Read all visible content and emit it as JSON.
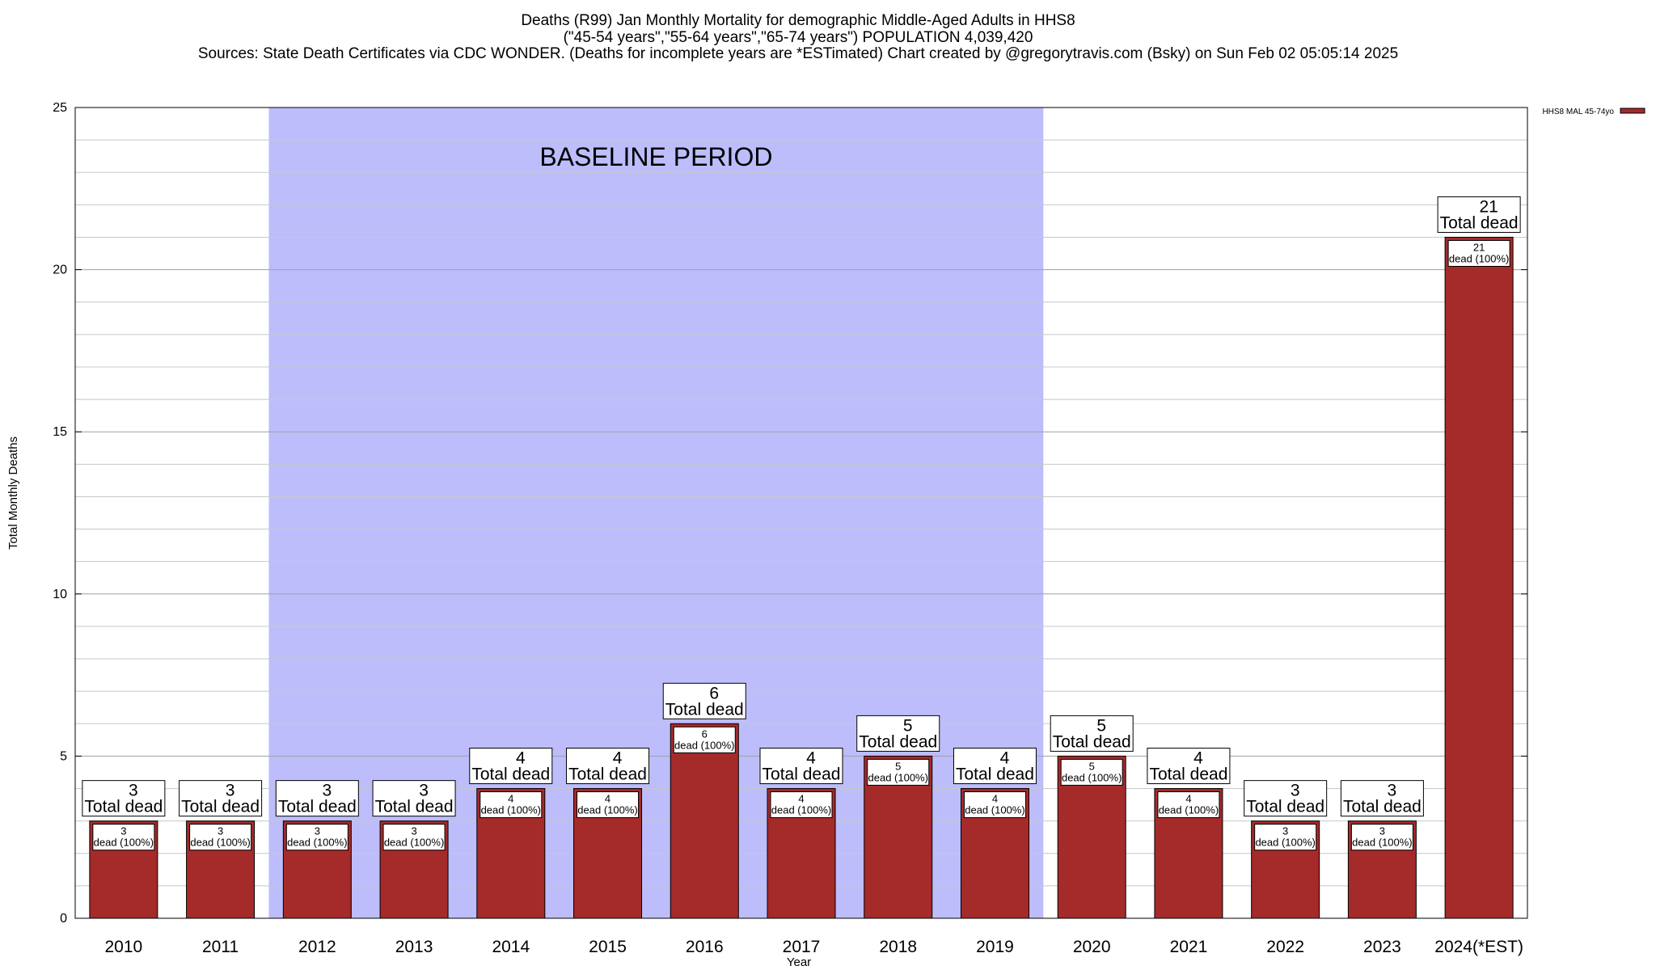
{
  "chart_data": {
    "type": "bar",
    "title_lines": [
      "Deaths (R99) Jan Monthly Mortality for demographic Middle-Aged Adults in HHS8",
      "(\"45-54 years\",\"55-64 years\",\"65-74 years\") POPULATION 4,039,420",
      "Sources: State Death Certificates via CDC WONDER. (Deaths for incomplete years are *ESTimated)                Chart created by @gregorytravis.com (Bsky) on Sun Feb 02 05:05:14 2025"
    ],
    "xlabel": "Year",
    "ylabel": "Total Monthly Deaths",
    "ylim": [
      0,
      25
    ],
    "yticks": [
      0,
      5,
      10,
      15,
      20,
      25
    ],
    "minor_grid_step": 1,
    "grid": true,
    "categories": [
      "2010",
      "2011",
      "2012",
      "2013",
      "2014",
      "2015",
      "2016",
      "2017",
      "2018",
      "2019",
      "2020",
      "2021",
      "2022",
      "2023",
      "2024(*EST)"
    ],
    "series": [
      {
        "name": "HHS8 MAL 45-74yo",
        "color": "#a52a2a",
        "values": [
          3,
          3,
          3,
          3,
          4,
          4,
          6,
          4,
          5,
          4,
          5,
          4,
          3,
          3,
          21
        ]
      }
    ],
    "total_label_suffix": "Total dead",
    "inner_label_suffix": "dead (100%)",
    "annotation": {
      "text": "BASELINE PERIOD",
      "start_category": "2012",
      "end_category": "2019",
      "color": "#bdbdfc"
    },
    "legend_position": "top-right"
  }
}
